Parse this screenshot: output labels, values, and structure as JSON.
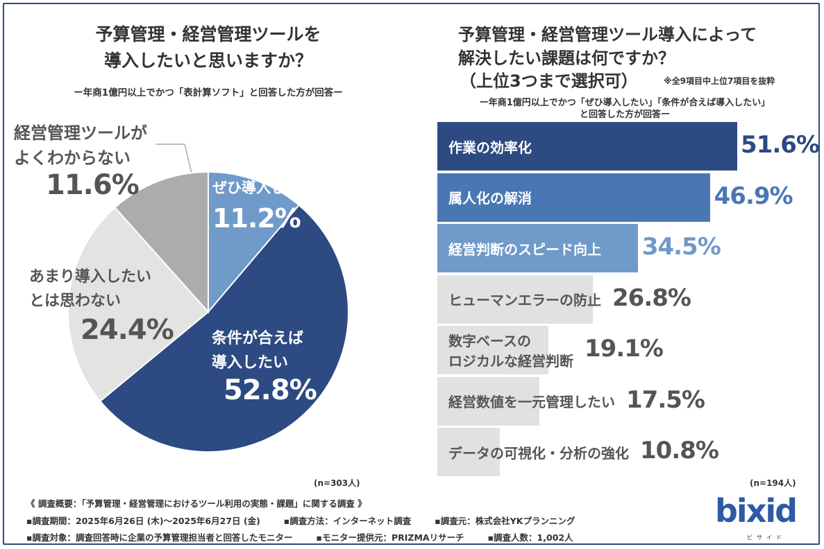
{
  "left": {
    "title_line1": "予算管理・経営管理ツールを",
    "title_line2": "導入したいと思いますか？",
    "subtitle": "ー年商1億円以上でかつ「表計算ソフト」と回答した方が回答ー",
    "n_label": "(n=303人)"
  },
  "right": {
    "title_line1": "予算管理・経営管理ツール導入によって",
    "title_line2": "解決したい課題は何ですか？",
    "title_line3": "（上位3つまで選択可）",
    "note": "※全9項目中上位7項目を抜粋",
    "subtitle_line1": "ー年商1億円以上でかつ「ぜひ導入したい」「条件が合えば導入したい」",
    "subtitle_line2": "と回答した方が回答ー",
    "n_label": "(n=194人)"
  },
  "chart_data": [
    {
      "type": "pie",
      "title": "予算管理・経営管理ツールを導入したいと思いますか？",
      "slices": [
        {
          "label_line1": "ぜひ導入したい",
          "label_line2": "",
          "value": 11.2,
          "value_text": "11.2%",
          "color": "#6f9ac9",
          "text_color": "#ffffff"
        },
        {
          "label_line1": "条件が合えば",
          "label_line2": "導入したい",
          "value": 52.8,
          "value_text": "52.8%",
          "color": "#2d4a82",
          "text_color": "#ffffff"
        },
        {
          "label_line1": "あまり導入したい",
          "label_line2": "とは思わない",
          "value": 24.4,
          "value_text": "24.4%",
          "color": "#e3e3e3",
          "text_color": "#555555"
        },
        {
          "label_line1": "経営管理ツールが",
          "label_line2": "よくわからない",
          "value": 11.6,
          "value_text": "11.6%",
          "color": "#acacac",
          "text_color": "#555555"
        }
      ]
    },
    {
      "type": "bar",
      "orientation": "horizontal",
      "title": "予算管理・経営管理ツール導入によって解決したい課題は何ですか？",
      "xlim": [
        0,
        51.6
      ],
      "bars": [
        {
          "label_line1": "作業の効率化",
          "label_line2": "",
          "value": 51.6,
          "value_text": "51.6%",
          "color": "#2d4a82",
          "label_color": "#ffffff",
          "value_color": "#2d4a82"
        },
        {
          "label_line1": "属人化の解消",
          "label_line2": "",
          "value": 46.9,
          "value_text": "46.9%",
          "color": "#4a77b4",
          "label_color": "#ffffff",
          "value_color": "#4a77b4"
        },
        {
          "label_line1": "経営判断のスピード向上",
          "label_line2": "",
          "value": 34.5,
          "value_text": "34.5%",
          "color": "#6f9ac9",
          "label_color": "#ffffff",
          "value_color": "#6f9ac9"
        },
        {
          "label_line1": "ヒューマンエラーの防止",
          "label_line2": "",
          "value": 26.8,
          "value_text": "26.8%",
          "color": "#e1e1e1",
          "label_color": "#555555",
          "value_color": "#555555"
        },
        {
          "label_line1": "数字ベースの",
          "label_line2": "ロジカルな経営判断",
          "value": 19.1,
          "value_text": "19.1%",
          "color": "#e1e1e1",
          "label_color": "#555555",
          "value_color": "#555555"
        },
        {
          "label_line1": "経営数値を一元管理したい",
          "label_line2": "",
          "value": 17.5,
          "value_text": "17.5%",
          "color": "#e1e1e1",
          "label_color": "#555555",
          "value_color": "#555555"
        },
        {
          "label_line1": "データの可視化・分析の強化",
          "label_line2": "",
          "value": 10.8,
          "value_text": "10.8%",
          "color": "#e1e1e1",
          "label_color": "#555555",
          "value_color": "#555555"
        }
      ]
    }
  ],
  "footer": {
    "overview": "《 調査概要：「予算管理・経営管理におけるツール利用の実態・課題」に関する調査 》",
    "period": "▪調査期間：2025年6月26日 (木)～2025年6月27日 (金)",
    "method": "▪調査方法：インターネット調査",
    "source": "▪調査元：株式会社YKプランニング",
    "target": "▪調査対象：調査回答時に企業の予算管理担当者と回答したモニター",
    "provider": "▪モニター提供元：PRIZMAリサーチ",
    "count": "▪調査人数：1,002人"
  },
  "logo": {
    "text": "bixid",
    "sub": "ビサイド"
  }
}
